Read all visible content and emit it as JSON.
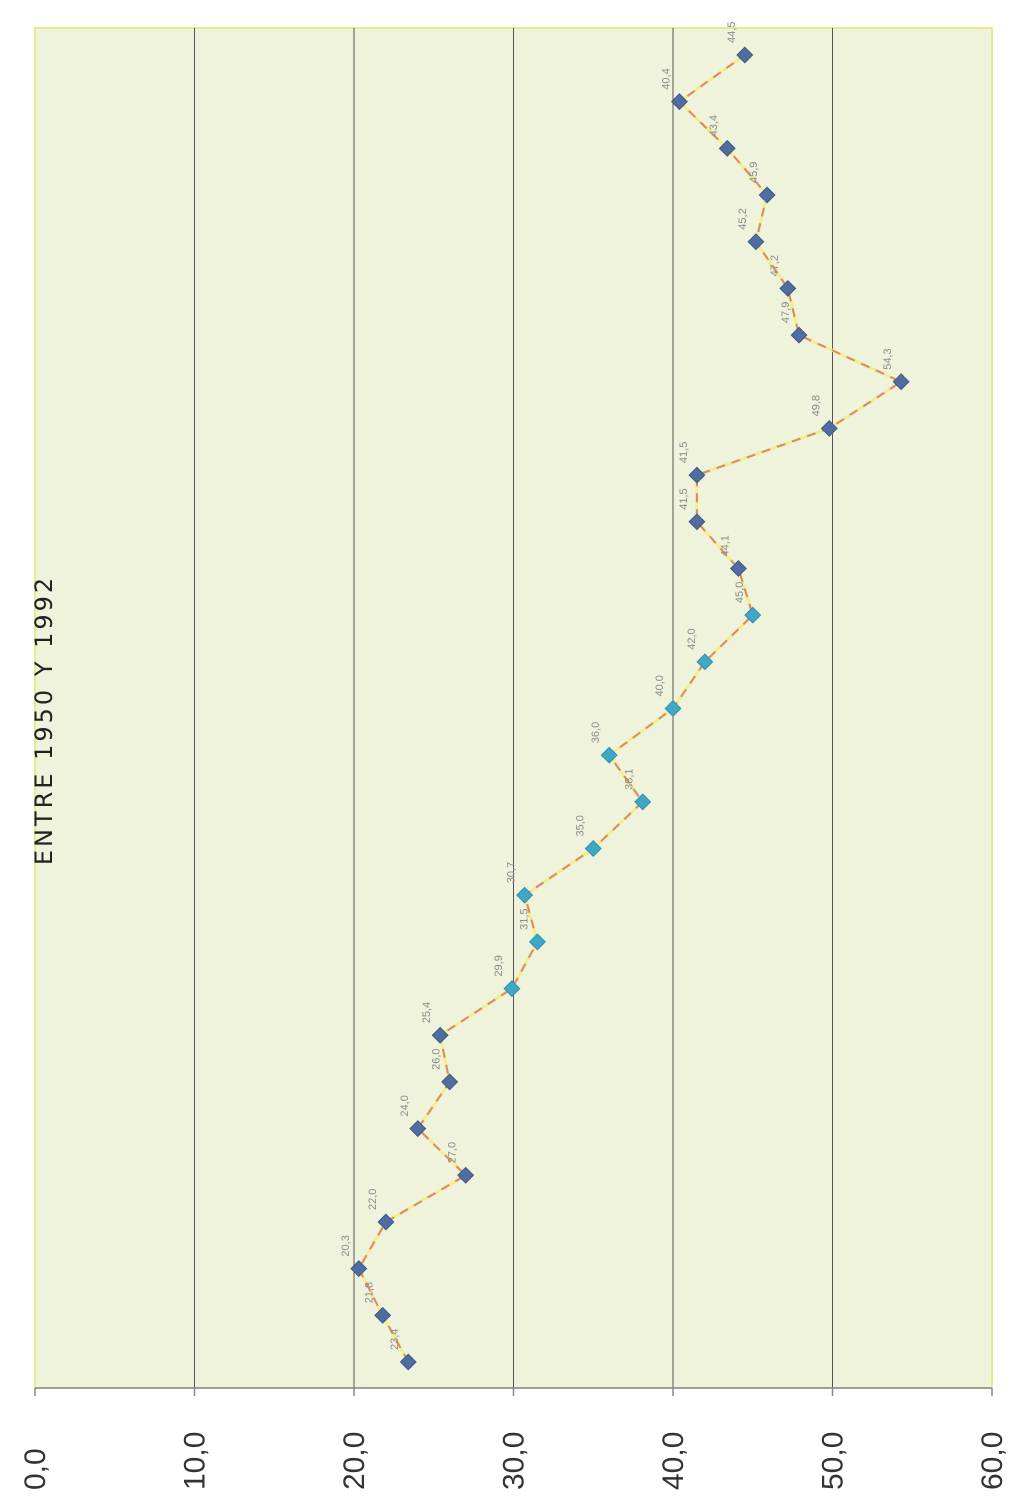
{
  "chart_data": {
    "type": "line",
    "title": "ENTRE 1950 Y 1992",
    "xlabel": "",
    "ylabel": "",
    "ylim": [
      0,
      60
    ],
    "yticks": [
      "0,0",
      "10,0",
      "20,0",
      "30,0",
      "40,0",
      "50,0",
      "60,0"
    ],
    "grid": true,
    "series": [
      {
        "values": [
          23.4,
          21.8,
          20.3,
          22.0,
          27.0,
          24.0,
          26.0,
          25.4,
          29.9,
          31.5,
          30.7,
          35.0,
          38.1,
          36.0,
          40.0,
          42.0,
          45.0,
          44.1,
          41.5,
          41.5,
          49.8,
          54.3,
          47.9,
          47.2,
          45.2,
          45.9,
          43.4,
          40.4,
          44.5
        ],
        "labels": [
          "23,4",
          "21,8",
          "20,3",
          "22,0",
          "27,0",
          "24,0",
          "26,0",
          "25,4",
          "29,9",
          "31,5",
          "30,7",
          "35,0",
          "38,1",
          "36,0",
          "40,0",
          "42,0",
          "45,0",
          "44,1",
          "41,5",
          "41,5",
          "49,8",
          "54,3",
          "47,9",
          "47,2",
          "45,2",
          "45,9",
          "43,4",
          "40,4",
          "44,5"
        ]
      }
    ]
  },
  "colors": {
    "plot_background": "#f0f3dc",
    "plot_border": "#e6eb90",
    "gridline": "#555555",
    "line_primary": "#f2ee8c",
    "line_dashes": "#d98870",
    "marker_dark": "#4f6d9e",
    "marker_light": "#3fa8c4"
  }
}
